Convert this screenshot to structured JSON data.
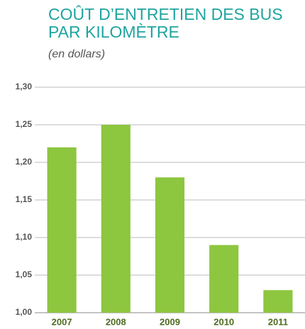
{
  "chart_data": {
    "type": "bar",
    "title": [
      "COÛT D’ENTRETIEN DES BUS",
      "PAR KILOMÈTRE"
    ],
    "subtitle": "(en dollars)",
    "categories": [
      "2007",
      "2008",
      "2009",
      "2010",
      "2011"
    ],
    "values": [
      1.22,
      1.25,
      1.18,
      1.09,
      1.03
    ],
    "color": "#8dc63f",
    "ylim": [
      1.0,
      1.3
    ],
    "yticks": [
      {
        "value": 1.0,
        "label": "1,00"
      },
      {
        "value": 1.05,
        "label": "1,05"
      },
      {
        "value": 1.1,
        "label": "1,10"
      },
      {
        "value": 1.15,
        "label": "1,15"
      },
      {
        "value": 1.2,
        "label": "1,20"
      },
      {
        "value": 1.25,
        "label": "1,25"
      },
      {
        "value": 1.3,
        "label": "1,30"
      }
    ],
    "grid": true
  }
}
